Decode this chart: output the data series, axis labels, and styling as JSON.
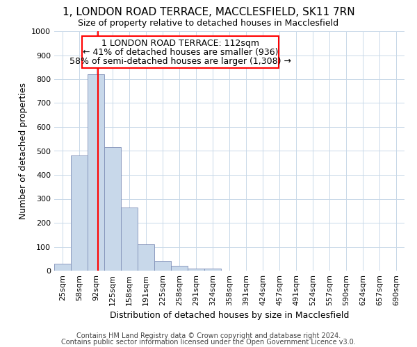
{
  "title": "1, LONDON ROAD TERRACE, MACCLESFIELD, SK11 7RN",
  "subtitle": "Size of property relative to detached houses in Macclesfield",
  "xlabel": "Distribution of detached houses by size in Macclesfield",
  "ylabel": "Number of detached properties",
  "footnote1": "Contains HM Land Registry data © Crown copyright and database right 2024.",
  "footnote2": "Contains public sector information licensed under the Open Government Licence v3.0.",
  "bar_labels": [
    "25sqm",
    "58sqm",
    "92sqm",
    "125sqm",
    "158sqm",
    "191sqm",
    "225sqm",
    "258sqm",
    "291sqm",
    "324sqm",
    "358sqm",
    "391sqm",
    "424sqm",
    "457sqm",
    "491sqm",
    "524sqm",
    "557sqm",
    "590sqm",
    "624sqm",
    "657sqm",
    "690sqm"
  ],
  "bar_values": [
    30,
    480,
    820,
    515,
    265,
    110,
    40,
    20,
    10,
    8,
    0,
    0,
    0,
    0,
    0,
    0,
    0,
    0,
    0,
    0,
    0
  ],
  "bar_color": "#c8d8ea",
  "bar_edge_color": "#8090b8",
  "ylim": [
    0,
    1000
  ],
  "yticks": [
    0,
    100,
    200,
    300,
    400,
    500,
    600,
    700,
    800,
    900,
    1000
  ],
  "property_line_color": "red",
  "annotation_line1": "1 LONDON ROAD TERRACE: 112sqm",
  "annotation_line2": "← 41% of detached houses are smaller (936)",
  "annotation_line3": "58% of semi-detached houses are larger (1,308) →",
  "background_color": "#ffffff",
  "grid_color": "#c8d8e8",
  "title_fontsize": 11,
  "subtitle_fontsize": 9,
  "annotation_fontsize": 9,
  "tick_fontsize": 8,
  "label_fontsize": 9,
  "footnote_fontsize": 7
}
